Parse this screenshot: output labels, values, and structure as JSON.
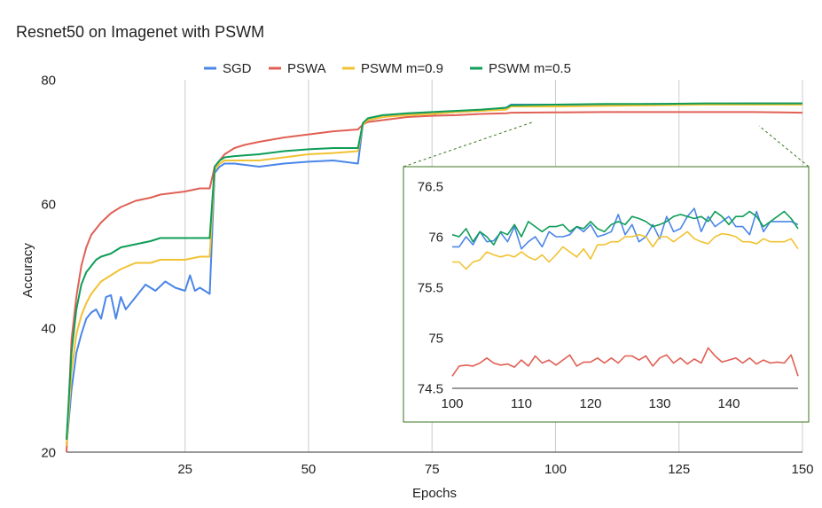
{
  "chart_data": [
    {
      "type": "line",
      "title": "Resnet50 on Imagenet with PSWM",
      "xlabel": "Epochs",
      "ylabel": "Accuracy",
      "xlim": [
        1,
        150
      ],
      "ylim": [
        20,
        80
      ],
      "xticks": [
        25,
        50,
        75,
        100,
        125,
        150
      ],
      "yticks": [
        20,
        40,
        60,
        80
      ],
      "grid": "vertical",
      "legend": "top",
      "series": [
        {
          "name": "SGD",
          "color": "#4a86e8",
          "x": [
            1,
            2,
            3,
            4,
            5,
            6,
            7,
            8,
            9,
            10,
            11,
            12,
            13,
            15,
            17,
            19,
            21,
            23,
            25,
            26,
            27,
            28,
            29,
            30,
            31,
            32,
            33,
            35,
            40,
            45,
            50,
            55,
            60,
            61,
            62,
            65,
            70,
            75,
            80,
            85,
            90,
            91,
            100,
            110,
            120,
            130,
            140,
            150
          ],
          "y": [
            21,
            30,
            36,
            39,
            41.5,
            42.5,
            43,
            41.5,
            45,
            45.3,
            41.5,
            45,
            43,
            45,
            47,
            46,
            47.5,
            46.5,
            46,
            48.5,
            46,
            46.5,
            46,
            45.5,
            65,
            66,
            66.5,
            66.5,
            66,
            66.5,
            66.8,
            67,
            66.5,
            72.8,
            73.5,
            74,
            74.5,
            74.5,
            74.8,
            75,
            75.5,
            76,
            76,
            76,
            76.1,
            76.1,
            76.2,
            76.2
          ]
        },
        {
          "name": "PSWA",
          "color": "#e06055",
          "x": [
            1,
            2,
            3,
            4,
            5,
            6,
            7,
            8,
            10,
            12,
            15,
            18,
            20,
            25,
            28,
            30,
            31,
            32,
            33,
            35,
            37,
            40,
            45,
            50,
            55,
            60,
            61,
            62,
            65,
            70,
            75,
            80,
            85,
            90,
            91,
            100,
            110,
            120,
            130,
            140,
            150
          ],
          "y": [
            20,
            38,
            45,
            50,
            53,
            55,
            56,
            57,
            58.5,
            59.5,
            60.5,
            61,
            61.5,
            62,
            62.5,
            62.5,
            66,
            67,
            68,
            69,
            69.5,
            70,
            70.7,
            71.2,
            71.7,
            72,
            72.8,
            73.2,
            73.5,
            74,
            74.2,
            74.3,
            74.5,
            74.6,
            74.7,
            74.75,
            74.8,
            74.8,
            74.8,
            74.8,
            74.7
          ]
        },
        {
          "name": "PSWM m=0.9",
          "color": "#f1c232",
          "x": [
            1,
            2,
            3,
            4,
            5,
            6,
            7,
            8,
            10,
            12,
            15,
            18,
            20,
            25,
            28,
            30,
            31,
            32,
            33,
            35,
            40,
            45,
            50,
            55,
            60,
            61,
            62,
            65,
            70,
            75,
            80,
            85,
            90,
            91,
            100,
            110,
            120,
            130,
            140,
            150
          ],
          "y": [
            21,
            33,
            39,
            42,
            44,
            45.5,
            46.5,
            47.5,
            48.5,
            49.5,
            50.5,
            50.5,
            51,
            51,
            51.5,
            51.5,
            65.5,
            66.5,
            67,
            67,
            67,
            67.5,
            68,
            68.2,
            68.5,
            72.8,
            73.5,
            74,
            74.3,
            74.5,
            74.8,
            75,
            75.2,
            75.7,
            75.7,
            75.8,
            75.9,
            76,
            76,
            76
          ]
        },
        {
          "name": "PSWM m=0.5",
          "color": "#0f9d58",
          "x": [
            1,
            2,
            3,
            4,
            5,
            6,
            7,
            8,
            10,
            12,
            15,
            18,
            20,
            25,
            28,
            30,
            31,
            32,
            33,
            35,
            40,
            45,
            50,
            55,
            60,
            61,
            62,
            65,
            70,
            75,
            80,
            85,
            90,
            91,
            100,
            110,
            120,
            130,
            140,
            150
          ],
          "y": [
            22,
            36,
            43,
            47,
            49,
            50,
            51,
            51.5,
            52,
            53,
            53.5,
            54,
            54.5,
            54.5,
            54.5,
            54.5,
            66,
            67,
            67.5,
            67.7,
            68,
            68.5,
            68.8,
            69,
            69,
            73,
            73.8,
            74.3,
            74.6,
            74.8,
            75,
            75.2,
            75.5,
            75.9,
            76,
            76.1,
            76.1,
            76.2,
            76.2,
            76.2
          ]
        }
      ]
    },
    {
      "type": "line",
      "title": "",
      "xlim": [
        100,
        150
      ],
      "ylim": [
        74.5,
        76.5
      ],
      "xticks": [
        100,
        110,
        120,
        130,
        140
      ],
      "yticks": [
        74.5,
        75,
        75.5,
        76,
        76.5
      ],
      "grid": "none",
      "series": [
        {
          "name": "SGD",
          "color": "#4a86e8",
          "x": [
            100,
            101,
            102,
            103,
            104,
            105,
            106,
            107,
            108,
            109,
            110,
            111,
            112,
            113,
            114,
            115,
            116,
            117,
            118,
            119,
            120,
            121,
            122,
            123,
            124,
            125,
            126,
            127,
            128,
            129,
            130,
            131,
            132,
            133,
            134,
            135,
            136,
            137,
            138,
            139,
            140,
            141,
            142,
            143,
            144,
            145,
            146,
            147,
            148,
            149,
            150
          ],
          "y": [
            75.9,
            75.9,
            76.0,
            75.92,
            76.05,
            75.95,
            75.96,
            76.04,
            75.95,
            76.1,
            75.88,
            75.95,
            76.0,
            75.9,
            76.05,
            76.0,
            76.0,
            76.02,
            76.1,
            76.05,
            76.12,
            76.0,
            76.02,
            76.05,
            76.22,
            76.02,
            76.12,
            75.95,
            76.0,
            76.12,
            75.98,
            76.2,
            76.05,
            76.08,
            76.2,
            76.28,
            76.05,
            76.2,
            76.1,
            76.15,
            76.2,
            76.1,
            76.1,
            76.02,
            76.25,
            76.05,
            76.15,
            76.15,
            76.15,
            76.15,
            76.12
          ]
        },
        {
          "name": "PSWA",
          "color": "#e06055",
          "x": [
            100,
            101,
            102,
            103,
            104,
            105,
            106,
            107,
            108,
            109,
            110,
            111,
            112,
            113,
            114,
            115,
            116,
            117,
            118,
            119,
            120,
            121,
            122,
            123,
            124,
            125,
            126,
            127,
            128,
            129,
            130,
            131,
            132,
            133,
            134,
            135,
            136,
            137,
            138,
            139,
            140,
            141,
            142,
            143,
            144,
            145,
            146,
            147,
            148,
            149,
            150
          ],
          "y": [
            74.62,
            74.72,
            74.73,
            74.72,
            74.75,
            74.8,
            74.75,
            74.73,
            74.74,
            74.71,
            74.78,
            74.72,
            74.82,
            74.75,
            74.78,
            74.73,
            74.78,
            74.83,
            74.72,
            74.76,
            74.76,
            74.8,
            74.75,
            74.8,
            74.75,
            74.82,
            74.82,
            74.78,
            74.82,
            74.72,
            74.8,
            74.83,
            74.75,
            74.8,
            74.74,
            74.79,
            74.75,
            74.9,
            74.82,
            74.76,
            74.78,
            74.8,
            74.75,
            74.8,
            74.74,
            74.78,
            74.75,
            74.76,
            74.75,
            74.83,
            74.62
          ]
        },
        {
          "name": "PSWM m=0.9",
          "color": "#f1c232",
          "x": [
            100,
            101,
            102,
            103,
            104,
            105,
            106,
            107,
            108,
            109,
            110,
            111,
            112,
            113,
            114,
            115,
            116,
            117,
            118,
            119,
            120,
            121,
            122,
            123,
            124,
            125,
            126,
            127,
            128,
            129,
            130,
            131,
            132,
            133,
            134,
            135,
            136,
            137,
            138,
            139,
            140,
            141,
            142,
            143,
            144,
            145,
            146,
            147,
            148,
            149,
            150
          ],
          "y": [
            75.75,
            75.75,
            75.68,
            75.75,
            75.77,
            75.85,
            75.82,
            75.8,
            75.82,
            75.8,
            75.85,
            75.8,
            75.77,
            75.82,
            75.75,
            75.82,
            75.9,
            75.85,
            75.8,
            75.88,
            75.78,
            75.92,
            75.92,
            75.95,
            75.95,
            76.0,
            76.0,
            76.02,
            76.0,
            75.9,
            76.0,
            76.0,
            75.95,
            76.0,
            76.05,
            75.98,
            75.95,
            75.93,
            76.0,
            76.03,
            76.02,
            76.0,
            75.95,
            75.95,
            75.93,
            75.98,
            75.95,
            75.95,
            75.95,
            75.98,
            75.88
          ]
        },
        {
          "name": "PSWM m=0.5",
          "color": "#0f9d58",
          "x": [
            100,
            101,
            102,
            103,
            104,
            105,
            106,
            107,
            108,
            109,
            110,
            111,
            112,
            113,
            114,
            115,
            116,
            117,
            118,
            119,
            120,
            121,
            122,
            123,
            124,
            125,
            126,
            127,
            128,
            129,
            130,
            131,
            132,
            133,
            134,
            135,
            136,
            137,
            138,
            139,
            140,
            141,
            142,
            143,
            144,
            145,
            146,
            147,
            148,
            149,
            150
          ],
          "y": [
            76.02,
            76.0,
            76.08,
            75.95,
            76.05,
            76.0,
            75.92,
            76.05,
            76.02,
            76.12,
            76.0,
            76.15,
            76.1,
            76.05,
            76.1,
            76.1,
            76.12,
            76.05,
            76.1,
            76.08,
            76.15,
            76.08,
            76.05,
            76.12,
            76.15,
            76.12,
            76.2,
            76.18,
            76.15,
            76.1,
            76.12,
            76.15,
            76.2,
            76.22,
            76.2,
            76.18,
            76.2,
            76.15,
            76.25,
            76.2,
            76.12,
            76.2,
            76.2,
            76.25,
            76.2,
            76.1,
            76.15,
            76.2,
            76.25,
            76.18,
            76.08
          ]
        }
      ]
    }
  ]
}
